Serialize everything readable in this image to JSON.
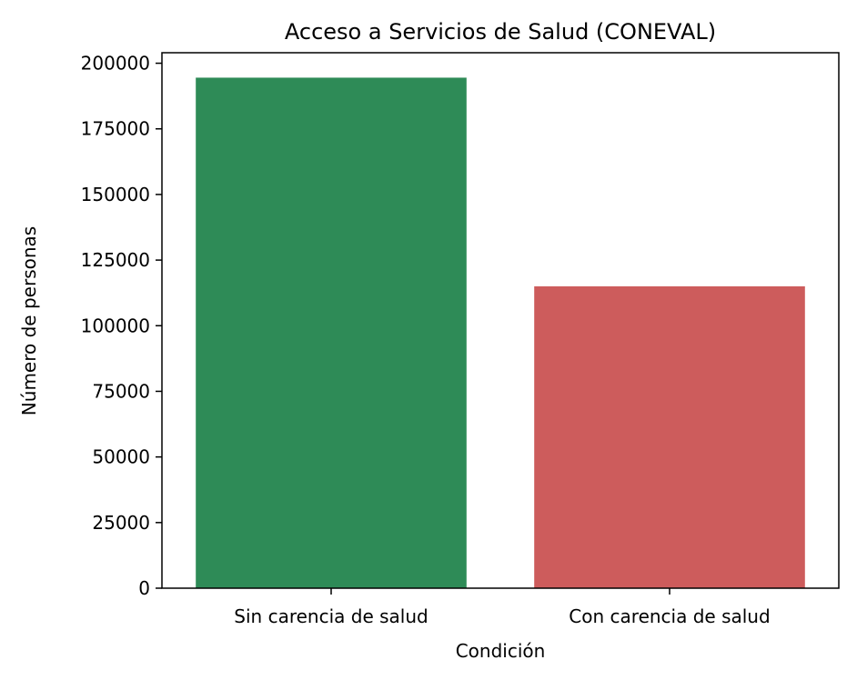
{
  "chart_data": {
    "type": "bar",
    "title": "Acceso a Servicios de Salud (CONEVAL)",
    "xlabel": "Condición",
    "ylabel": "Número de personas",
    "categories": [
      "Sin carencia de salud",
      "Con carencia de salud"
    ],
    "values": [
      194500,
      115000
    ],
    "colors": [
      "#2e8b57",
      "#cd5c5c"
    ],
    "ylim": [
      0,
      204000
    ],
    "yticks": [
      0,
      25000,
      50000,
      75000,
      100000,
      125000,
      150000,
      175000,
      200000
    ],
    "grid": false,
    "legend": "none"
  }
}
